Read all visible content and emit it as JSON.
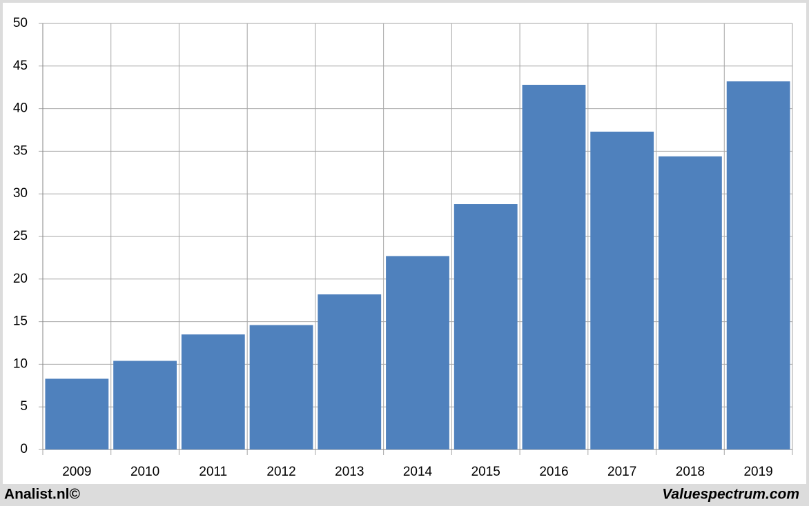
{
  "chart_data": {
    "type": "bar",
    "categories": [
      "2009",
      "2010",
      "2011",
      "2012",
      "2013",
      "2014",
      "2015",
      "2016",
      "2017",
      "2018",
      "2019"
    ],
    "values": [
      8.3,
      10.4,
      13.5,
      14.6,
      18.2,
      22.7,
      28.8,
      42.8,
      37.3,
      34.4,
      43.2
    ],
    "color": "#4f81bd",
    "ylim": [
      0,
      50
    ],
    "yticks": [
      0,
      5,
      10,
      15,
      20,
      25,
      30,
      35,
      40,
      45,
      50
    ],
    "grid": true
  },
  "footer": {
    "left": "Analist.nl©",
    "right": "Valuespectrum.com"
  }
}
